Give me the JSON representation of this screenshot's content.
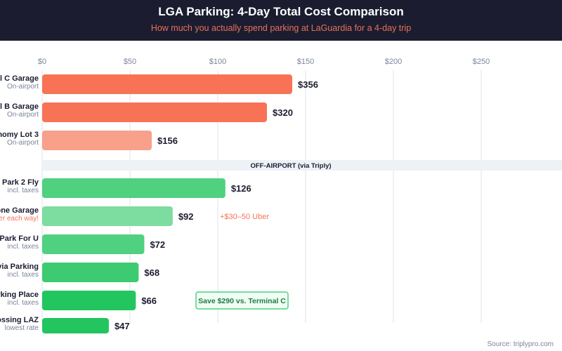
{
  "chart_data": {
    "type": "bar",
    "orientation": "horizontal",
    "title": "LGA Parking: 4-Day Total Cost Comparison",
    "subtitle": "How much you actually spend parking at LaGuardia for a 4-day trip",
    "x_ticks": [
      "$0",
      "$50",
      "$100",
      "$150",
      "$200",
      "$250"
    ],
    "x_tick_values": [
      0,
      50,
      100,
      150,
      200,
      250
    ],
    "grid": true,
    "section_label": "OFF-AIRPORT (via Triply)",
    "bars": [
      {
        "name": "l C Garage",
        "sub": "On-airport",
        "value": 356,
        "label": "$356",
        "group": "on",
        "color": "#f87356"
      },
      {
        "name": "l B Garage",
        "sub": "On-airport",
        "value": 320,
        "label": "$320",
        "group": "on",
        "color": "#f87356"
      },
      {
        "name": "nomy Lot 3",
        "sub": "On-airport",
        "value": 156,
        "label": "$156",
        "group": "on",
        "color": "#f9a08a"
      },
      {
        "name": "Park 2 Fly",
        "sub": "incl. taxes",
        "value": 126,
        "label": "$126",
        "group": "off",
        "color": "#4fd17f"
      },
      {
        "name": "one Garage",
        "sub": "er each way!",
        "sub_color": "#f87356",
        "value": 92,
        "label": "$92",
        "group": "off",
        "color": "#7ddc9f",
        "note": "+$30–50 Uber"
      },
      {
        "name": "Park For U",
        "sub": "incl. taxes",
        "value": 72,
        "label": "$72",
        "group": "off",
        "color": "#4fd17f"
      },
      {
        "name": "via Parking",
        "sub": "incl. taxes",
        "value": 68,
        "label": "$68",
        "group": "off",
        "color": "#3ccb72"
      },
      {
        "name": "rking Place",
        "sub": "incl. taxes",
        "value": 66,
        "label": "$66",
        "group": "off",
        "color": "#22c55e",
        "callout": "Save $290 vs. Terminal C"
      },
      {
        "name": "ossing LAZ",
        "sub": "lowest rate",
        "value": 47,
        "label": "$47",
        "group": "off",
        "color": "#22c55e"
      }
    ],
    "source": "Source: triplypro.com"
  }
}
